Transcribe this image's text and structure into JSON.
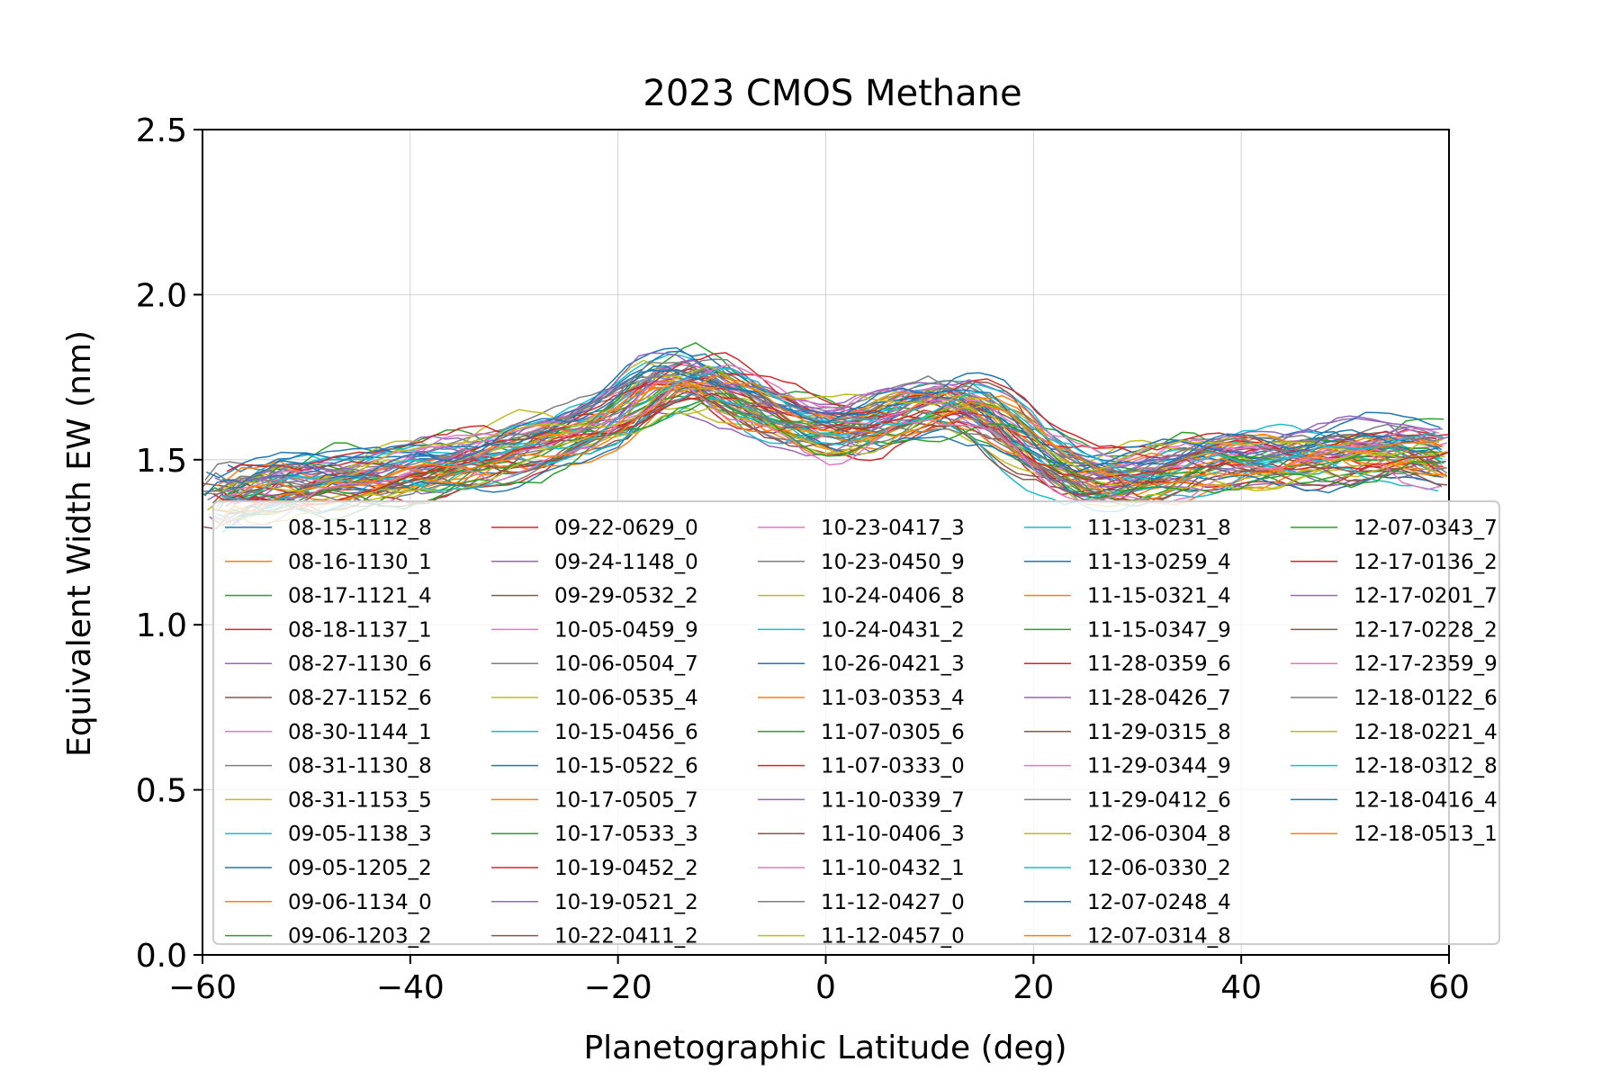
{
  "chart_data": {
    "type": "line",
    "title": "2023 CMOS Methane",
    "xlabel": "Planetographic Latitude (deg)",
    "ylabel": "Equivalent Width EW (nm)",
    "xlim": [
      -60,
      60
    ],
    "ylim": [
      0.0,
      2.5
    ],
    "xticks": [
      -60,
      -40,
      -20,
      0,
      20,
      40,
      60
    ],
    "xtick_labels": [
      "−60",
      "−40",
      "−20",
      "0",
      "20",
      "40",
      "60"
    ],
    "yticks": [
      0.0,
      0.5,
      1.0,
      1.5,
      2.0,
      2.5
    ],
    "ytick_labels": [
      "0.0",
      "0.5",
      "1.0",
      "1.5",
      "2.0",
      "2.5"
    ],
    "grid": true,
    "legend_position": "lower-center",
    "palette": [
      "#1f77b4",
      "#ff7f0e",
      "#2ca02c",
      "#d62728",
      "#9467bd",
      "#8c564b",
      "#e377c2",
      "#7f7f7f",
      "#bcbd22",
      "#17becf"
    ],
    "profile_x": [
      -60,
      -56,
      -52,
      -48,
      -44,
      -40,
      -36,
      -32,
      -28,
      -24,
      -20,
      -16,
      -12,
      -8,
      -4,
      0,
      4,
      8,
      12,
      16,
      20,
      24,
      28,
      32,
      36,
      40,
      44,
      48,
      52,
      56,
      60
    ],
    "mean_profile": [
      1.4,
      1.41,
      1.42,
      1.43,
      1.44,
      1.46,
      1.48,
      1.51,
      1.54,
      1.58,
      1.63,
      1.73,
      1.74,
      1.67,
      1.62,
      1.59,
      1.6,
      1.65,
      1.68,
      1.64,
      1.53,
      1.45,
      1.43,
      1.45,
      1.49,
      1.5,
      1.5,
      1.52,
      1.53,
      1.53,
      1.5
    ],
    "series": [
      {
        "name": "08-15-1112_8"
      },
      {
        "name": "08-16-1130_1"
      },
      {
        "name": "08-17-1121_4"
      },
      {
        "name": "08-18-1137_1"
      },
      {
        "name": "08-27-1130_6"
      },
      {
        "name": "08-27-1152_6"
      },
      {
        "name": "08-30-1144_1"
      },
      {
        "name": "08-31-1130_8"
      },
      {
        "name": "08-31-1153_5"
      },
      {
        "name": "09-05-1138_3"
      },
      {
        "name": "09-05-1205_2"
      },
      {
        "name": "09-06-1134_0"
      },
      {
        "name": "09-06-1203_2"
      },
      {
        "name": "09-22-0629_0"
      },
      {
        "name": "09-24-1148_0"
      },
      {
        "name": "09-29-0532_2"
      },
      {
        "name": "10-05-0459_9"
      },
      {
        "name": "10-06-0504_7"
      },
      {
        "name": "10-06-0535_4"
      },
      {
        "name": "10-15-0456_6"
      },
      {
        "name": "10-15-0522_6"
      },
      {
        "name": "10-17-0505_7"
      },
      {
        "name": "10-17-0533_3"
      },
      {
        "name": "10-19-0452_2"
      },
      {
        "name": "10-19-0521_2"
      },
      {
        "name": "10-22-0411_2"
      },
      {
        "name": "10-23-0417_3"
      },
      {
        "name": "10-23-0450_9"
      },
      {
        "name": "10-24-0406_8"
      },
      {
        "name": "10-24-0431_2"
      },
      {
        "name": "10-26-0421_3"
      },
      {
        "name": "11-03-0353_4"
      },
      {
        "name": "11-07-0305_6"
      },
      {
        "name": "11-07-0333_0"
      },
      {
        "name": "11-10-0339_7"
      },
      {
        "name": "11-10-0406_3"
      },
      {
        "name": "11-10-0432_1"
      },
      {
        "name": "11-12-0427_0"
      },
      {
        "name": "11-12-0457_0"
      },
      {
        "name": "11-13-0231_8"
      },
      {
        "name": "11-13-0259_4"
      },
      {
        "name": "11-15-0321_4"
      },
      {
        "name": "11-15-0347_9"
      },
      {
        "name": "11-28-0359_6"
      },
      {
        "name": "11-28-0426_7"
      },
      {
        "name": "11-29-0315_8"
      },
      {
        "name": "11-29-0344_9"
      },
      {
        "name": "11-29-0412_6"
      },
      {
        "name": "12-06-0304_8"
      },
      {
        "name": "12-06-0330_2"
      },
      {
        "name": "12-07-0248_4"
      },
      {
        "name": "12-07-0314_8"
      },
      {
        "name": "12-07-0343_7"
      },
      {
        "name": "12-17-0136_2"
      },
      {
        "name": "12-17-0201_7"
      },
      {
        "name": "12-17-0228_2"
      },
      {
        "name": "12-17-2359_9"
      },
      {
        "name": "12-18-0122_6"
      },
      {
        "name": "12-18-0221_4"
      },
      {
        "name": "12-18-0312_8"
      },
      {
        "name": "12-18-0416_4"
      },
      {
        "name": "12-18-0513_1"
      }
    ]
  }
}
